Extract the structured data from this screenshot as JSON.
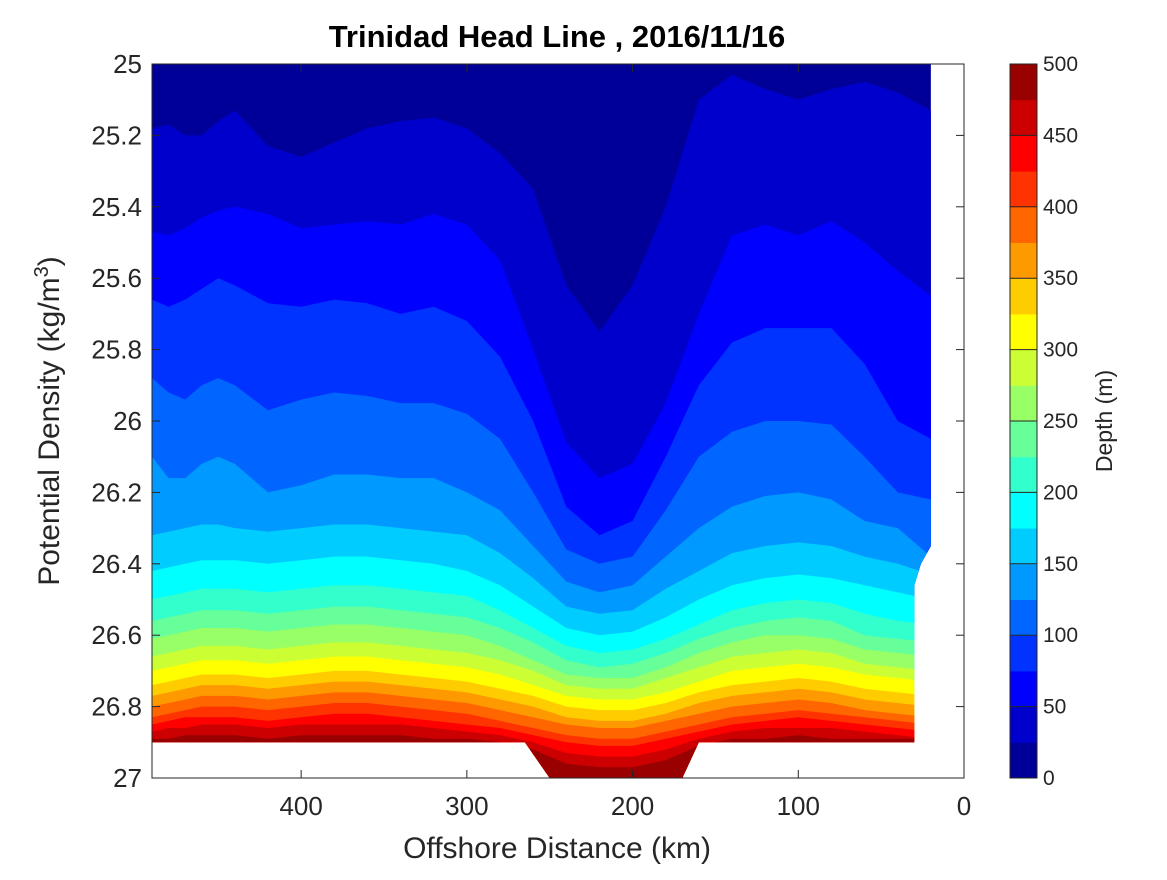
{
  "chart_data": {
    "type": "contourf",
    "title": "Trinidad Head Line , 2016/11/16",
    "xlabel": "Offshore Distance (km)",
    "ylabel": "Potential Density (kg/m",
    "ylabel_sup": "3",
    "ylabel_close": ")",
    "colorbar_label": "Depth (m)",
    "x_reversed": true,
    "y_reversed": true,
    "xlim": [
      490,
      0
    ],
    "ylim": [
      25,
      27
    ],
    "xticks": [
      400,
      300,
      200,
      100,
      0
    ],
    "yticks": [
      25,
      25.2,
      25.4,
      25.6,
      25.8,
      26,
      26.2,
      26.4,
      26.6,
      26.8,
      27
    ],
    "ytick_labels": [
      "25",
      "25.2",
      "25.4",
      "25.6",
      "25.8",
      "26",
      "26.2",
      "26.4",
      "26.6",
      "26.8",
      "27"
    ],
    "colorbar_range": [
      0,
      500
    ],
    "colorbar_ticks": [
      0,
      50,
      100,
      150,
      200,
      250,
      300,
      350,
      400,
      450,
      500
    ],
    "contour_interval": 25,
    "colormap": "jet",
    "contour_levels": [
      {
        "depth": 25,
        "x": [
          490,
          480,
          470,
          460,
          450,
          440,
          420,
          400,
          380,
          360,
          340,
          320,
          300,
          280,
          260,
          240,
          220,
          200,
          180,
          160,
          140,
          120,
          100,
          80,
          60,
          40,
          20
        ],
        "density": [
          25.18,
          25.17,
          25.2,
          25.2,
          25.16,
          25.13,
          25.23,
          25.26,
          25.22,
          25.18,
          25.16,
          25.15,
          25.18,
          25.25,
          25.35,
          25.62,
          25.75,
          25.62,
          25.4,
          25.1,
          25.03,
          25.07,
          25.1,
          25.07,
          25.05,
          25.08,
          25.13
        ]
      },
      {
        "depth": 50,
        "x": [
          490,
          480,
          470,
          460,
          450,
          440,
          420,
          400,
          380,
          360,
          340,
          320,
          300,
          280,
          260,
          240,
          220,
          200,
          180,
          160,
          140,
          120,
          100,
          80,
          60,
          40,
          20
        ],
        "density": [
          25.47,
          25.48,
          25.46,
          25.43,
          25.41,
          25.4,
          25.42,
          25.46,
          25.45,
          25.44,
          25.45,
          25.42,
          25.45,
          25.55,
          25.8,
          26.06,
          26.16,
          26.12,
          25.95,
          25.7,
          25.48,
          25.45,
          25.48,
          25.44,
          25.5,
          25.58,
          25.65
        ]
      },
      {
        "depth": 75,
        "x": [
          490,
          480,
          470,
          460,
          450,
          440,
          420,
          400,
          380,
          360,
          340,
          320,
          300,
          280,
          260,
          240,
          220,
          200,
          180,
          160,
          140,
          120,
          100,
          80,
          60,
          40,
          20
        ],
        "density": [
          25.66,
          25.68,
          25.66,
          25.63,
          25.6,
          25.62,
          25.67,
          25.68,
          25.66,
          25.67,
          25.7,
          25.68,
          25.72,
          25.82,
          26.0,
          26.24,
          26.32,
          26.28,
          26.1,
          25.9,
          25.78,
          25.74,
          25.74,
          25.74,
          25.84,
          26.0,
          26.05
        ]
      },
      {
        "depth": 100,
        "x": [
          490,
          480,
          470,
          460,
          450,
          440,
          420,
          400,
          380,
          360,
          340,
          320,
          300,
          280,
          260,
          240,
          220,
          200,
          180,
          160,
          140,
          120,
          100,
          80,
          60,
          40,
          20
        ],
        "density": [
          25.88,
          25.92,
          25.94,
          25.9,
          25.88,
          25.9,
          25.97,
          25.94,
          25.92,
          25.93,
          25.95,
          25.95,
          25.98,
          26.05,
          26.2,
          26.36,
          26.4,
          26.38,
          26.25,
          26.1,
          26.03,
          26.0,
          26.0,
          26.01,
          26.1,
          26.2,
          26.22
        ]
      },
      {
        "depth": 125,
        "x": [
          490,
          480,
          470,
          460,
          450,
          440,
          420,
          400,
          380,
          360,
          340,
          320,
          300,
          280,
          260,
          240,
          220,
          200,
          180,
          160,
          140,
          120,
          100,
          80,
          60,
          40,
          20
        ],
        "density": [
          26.1,
          26.16,
          26.16,
          26.12,
          26.1,
          26.12,
          26.2,
          26.18,
          26.15,
          26.15,
          26.16,
          26.16,
          26.2,
          26.25,
          26.35,
          26.45,
          26.48,
          26.46,
          26.38,
          26.3,
          26.24,
          26.21,
          26.2,
          26.22,
          26.28,
          26.3,
          26.38
        ]
      },
      {
        "depth": 150,
        "x": [
          490,
          480,
          470,
          460,
          450,
          440,
          420,
          400,
          380,
          360,
          340,
          320,
          300,
          280,
          260,
          240,
          220,
          200,
          180,
          160,
          140,
          120,
          100,
          80,
          60,
          40,
          20
        ],
        "density": [
          26.32,
          26.31,
          26.3,
          26.29,
          26.29,
          26.3,
          26.31,
          26.3,
          26.29,
          26.29,
          26.3,
          26.31,
          26.32,
          26.37,
          26.44,
          26.52,
          26.54,
          26.53,
          26.47,
          26.42,
          26.37,
          26.35,
          26.34,
          26.35,
          26.38,
          26.4,
          26.43
        ]
      },
      {
        "depth": 175,
        "x": [
          490,
          480,
          470,
          460,
          450,
          440,
          420,
          400,
          380,
          360,
          340,
          320,
          300,
          280,
          260,
          240,
          220,
          200,
          180,
          160,
          140,
          120,
          100,
          80,
          60,
          40,
          20
        ],
        "density": [
          26.42,
          26.41,
          26.4,
          26.39,
          26.39,
          26.39,
          26.4,
          26.39,
          26.38,
          26.38,
          26.39,
          26.4,
          26.42,
          26.46,
          26.52,
          26.58,
          26.6,
          26.59,
          26.55,
          26.5,
          26.46,
          26.44,
          26.43,
          26.44,
          26.46,
          26.48,
          26.5
        ]
      },
      {
        "depth": 200,
        "x": [
          490,
          480,
          470,
          460,
          450,
          440,
          420,
          400,
          380,
          360,
          340,
          320,
          300,
          280,
          260,
          240,
          220,
          200,
          180,
          160,
          140,
          120,
          100,
          80,
          60,
          40,
          20
        ],
        "density": [
          26.5,
          26.49,
          26.48,
          26.47,
          26.47,
          26.47,
          26.48,
          26.47,
          26.46,
          26.46,
          26.47,
          26.48,
          26.49,
          26.53,
          26.58,
          26.63,
          26.65,
          26.64,
          26.61,
          26.57,
          26.53,
          26.51,
          26.5,
          26.51,
          26.54,
          26.56,
          26.57
        ]
      },
      {
        "depth": 225,
        "x": [
          490,
          480,
          470,
          460,
          450,
          440,
          420,
          400,
          380,
          360,
          340,
          320,
          300,
          280,
          260,
          240,
          220,
          200,
          180,
          160,
          140,
          120,
          100,
          80,
          60,
          40,
          20
        ],
        "density": [
          26.56,
          26.55,
          26.54,
          26.53,
          26.53,
          26.53,
          26.54,
          26.53,
          26.52,
          26.52,
          26.53,
          26.54,
          26.55,
          26.58,
          26.62,
          26.67,
          26.69,
          26.68,
          26.65,
          26.61,
          26.58,
          26.56,
          26.55,
          26.56,
          26.6,
          26.61,
          26.62
        ]
      },
      {
        "depth": 250,
        "x": [
          490,
          480,
          470,
          460,
          450,
          440,
          420,
          400,
          380,
          360,
          340,
          320,
          300,
          280,
          260,
          240,
          220,
          200,
          180,
          160,
          140,
          120,
          100,
          80,
          60,
          40,
          20
        ],
        "density": [
          26.61,
          26.6,
          26.59,
          26.58,
          26.58,
          26.58,
          26.59,
          26.58,
          26.57,
          26.57,
          26.58,
          26.59,
          26.6,
          26.63,
          26.67,
          26.71,
          26.72,
          26.72,
          26.69,
          26.65,
          26.62,
          26.6,
          26.6,
          26.61,
          26.64,
          26.65,
          26.66
        ]
      },
      {
        "depth": 275,
        "x": [
          490,
          480,
          470,
          460,
          450,
          440,
          420,
          400,
          380,
          360,
          340,
          320,
          300,
          280,
          260,
          240,
          220,
          200,
          180,
          160,
          140,
          120,
          100,
          80,
          60,
          40,
          20
        ],
        "density": [
          26.66,
          26.65,
          26.64,
          26.63,
          26.63,
          26.63,
          26.64,
          26.63,
          26.62,
          26.62,
          26.63,
          26.64,
          26.65,
          26.67,
          26.7,
          26.74,
          26.75,
          26.75,
          26.72,
          26.69,
          26.66,
          26.65,
          26.64,
          26.65,
          26.68,
          26.69,
          26.7
        ]
      },
      {
        "depth": 300,
        "x": [
          490,
          480,
          470,
          460,
          450,
          440,
          420,
          400,
          380,
          360,
          340,
          320,
          300,
          280,
          260,
          240,
          220,
          200,
          180,
          160,
          140,
          120,
          100,
          80,
          60,
          40,
          20
        ],
        "density": [
          26.7,
          26.69,
          26.68,
          26.67,
          26.67,
          26.67,
          26.68,
          26.67,
          26.66,
          26.66,
          26.67,
          26.68,
          26.69,
          26.71,
          26.74,
          26.77,
          26.78,
          26.78,
          26.76,
          26.73,
          26.7,
          26.69,
          26.68,
          26.69,
          26.71,
          26.72,
          26.73
        ]
      },
      {
        "depth": 325,
        "x": [
          490,
          480,
          470,
          460,
          450,
          440,
          420,
          400,
          380,
          360,
          340,
          320,
          300,
          280,
          260,
          240,
          220,
          200,
          180,
          160,
          140,
          120,
          100,
          80,
          60,
          40,
          20
        ],
        "density": [
          26.74,
          26.73,
          26.72,
          26.71,
          26.71,
          26.71,
          26.72,
          26.71,
          26.7,
          26.7,
          26.71,
          26.72,
          26.73,
          26.75,
          26.77,
          26.8,
          26.81,
          26.81,
          26.79,
          26.76,
          26.74,
          26.73,
          26.72,
          26.73,
          26.75,
          26.76,
          26.77
        ]
      },
      {
        "depth": 350,
        "x": [
          490,
          480,
          470,
          460,
          450,
          440,
          420,
          400,
          380,
          360,
          340,
          320,
          300,
          280,
          260,
          240,
          220,
          200,
          180,
          160,
          140,
          120,
          100,
          80,
          60,
          40,
          20
        ],
        "density": [
          26.77,
          26.76,
          26.75,
          26.74,
          26.74,
          26.74,
          26.75,
          26.74,
          26.73,
          26.73,
          26.74,
          26.75,
          26.76,
          26.78,
          26.8,
          26.83,
          26.84,
          26.84,
          26.82,
          26.79,
          26.77,
          26.76,
          26.75,
          26.76,
          26.78,
          26.79,
          26.8
        ]
      },
      {
        "depth": 375,
        "x": [
          490,
          480,
          470,
          460,
          450,
          440,
          420,
          400,
          380,
          360,
          340,
          320,
          300,
          280,
          260,
          240,
          220,
          200,
          180,
          160,
          140,
          120,
          100,
          80,
          60,
          40,
          20
        ],
        "density": [
          26.8,
          26.79,
          26.78,
          26.77,
          26.77,
          26.77,
          26.78,
          26.77,
          26.76,
          26.76,
          26.77,
          26.78,
          26.79,
          26.81,
          26.83,
          26.85,
          26.86,
          26.86,
          26.84,
          26.82,
          26.8,
          26.79,
          26.78,
          26.79,
          26.81,
          26.82,
          26.83
        ]
      },
      {
        "depth": 400,
        "x": [
          490,
          480,
          470,
          460,
          450,
          440,
          420,
          400,
          380,
          360,
          340,
          320,
          300,
          280,
          260,
          240,
          220,
          200,
          180,
          160,
          140,
          120,
          100,
          80,
          60,
          40,
          20
        ],
        "density": [
          26.83,
          26.82,
          26.81,
          26.8,
          26.8,
          26.8,
          26.81,
          26.8,
          26.79,
          26.79,
          26.8,
          26.81,
          26.82,
          26.84,
          26.86,
          26.88,
          26.89,
          26.89,
          26.87,
          26.85,
          26.83,
          26.82,
          26.81,
          26.82,
          26.83,
          26.84,
          26.85
        ]
      },
      {
        "depth": 425,
        "x": [
          490,
          480,
          470,
          460,
          450,
          440,
          420,
          400,
          380,
          360,
          340,
          320,
          300,
          280,
          260,
          240,
          220,
          200,
          180,
          160,
          140,
          120,
          100,
          80,
          60,
          40,
          20
        ],
        "density": [
          26.85,
          26.84,
          26.83,
          26.83,
          26.83,
          26.83,
          26.84,
          26.83,
          26.82,
          26.82,
          26.83,
          26.84,
          26.85,
          26.86,
          26.88,
          26.9,
          26.91,
          26.91,
          26.89,
          26.87,
          26.85,
          26.84,
          26.83,
          26.84,
          26.85,
          26.86,
          26.87
        ]
      },
      {
        "depth": 450,
        "x": [
          490,
          480,
          470,
          460,
          450,
          440,
          420,
          400,
          380,
          360,
          340,
          320,
          300,
          280,
          260,
          240,
          220,
          200,
          180,
          160,
          140,
          120,
          100,
          80,
          60,
          40,
          20
        ],
        "density": [
          26.87,
          26.86,
          26.86,
          26.85,
          26.85,
          26.85,
          26.86,
          26.85,
          26.85,
          26.85,
          26.85,
          26.86,
          26.87,
          26.88,
          26.9,
          26.93,
          26.94,
          26.94,
          26.92,
          26.89,
          26.87,
          26.86,
          26.86,
          26.86,
          26.87,
          26.88,
          26.89
        ]
      },
      {
        "depth": 475,
        "x": [
          490,
          480,
          470,
          460,
          450,
          440,
          420,
          400,
          380,
          360,
          340,
          320,
          300,
          280,
          260,
          240,
          220,
          200,
          180,
          160,
          140,
          120,
          100,
          80,
          60,
          40,
          20
        ],
        "density": [
          26.89,
          26.89,
          26.88,
          26.88,
          26.88,
          26.88,
          26.89,
          26.88,
          26.88,
          26.88,
          26.88,
          26.89,
          26.89,
          26.9,
          26.92,
          26.96,
          26.97,
          26.97,
          26.95,
          26.91,
          26.89,
          26.89,
          26.88,
          26.89,
          26.89,
          26.89,
          26.89
        ]
      }
    ],
    "data_mask": {
      "right_edge_x": [
        20,
        20,
        20,
        26,
        30,
        30,
        30
      ],
      "right_edge_density": [
        25,
        26.2,
        26.35,
        26.4,
        26.46,
        26.55,
        26.9
      ],
      "bottom_density": 26.9,
      "trough_x": [
        265,
        250,
        240,
        220,
        200,
        185,
        170,
        160
      ],
      "trough_density": [
        26.9,
        27,
        27,
        27,
        27,
        27,
        27,
        26.9
      ]
    }
  },
  "colors": {
    "background": "#ffffff",
    "axes_edge": "#262626"
  }
}
